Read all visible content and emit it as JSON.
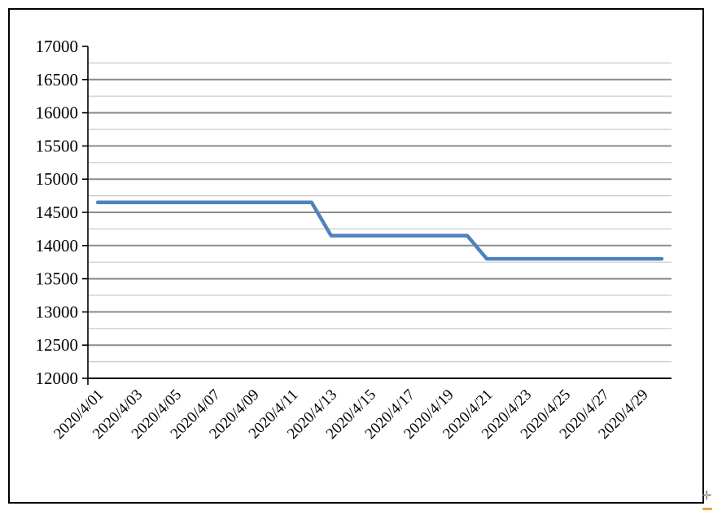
{
  "chart_data": {
    "type": "line",
    "title": "",
    "legend": "none",
    "x_labels": [
      "2020/4/01",
      "2020/4/03",
      "2020/4/05",
      "2020/4/07",
      "2020/4/09",
      "2020/4/11",
      "2020/4/13",
      "2020/4/15",
      "2020/4/17",
      "2020/4/19",
      "2020/4/21",
      "2020/4/23",
      "2020/4/25",
      "2020/4/27",
      "2020/4/29"
    ],
    "x_label_every_n_points": 2,
    "x_label_rotation_deg": -45,
    "series": [
      {
        "color": "#4F81BD",
        "values": [
          14650,
          14650,
          14650,
          14650,
          14650,
          14650,
          14650,
          14650,
          14650,
          14650,
          14650,
          14650,
          14150,
          14150,
          14150,
          14150,
          14150,
          14150,
          14150,
          14150,
          13800,
          13800,
          13800,
          13800,
          13800,
          13800,
          13800,
          13800,
          13800,
          13800
        ]
      }
    ],
    "ylim": [
      12000,
      17000
    ],
    "y_major": 500,
    "y_minor": 250,
    "y_tick_labels": [
      "12000",
      "12500",
      "13000",
      "13500",
      "14000",
      "14500",
      "15000",
      "15500",
      "16000",
      "16500",
      "17000"
    ],
    "grid": {
      "major_on": true,
      "minor_on": true,
      "major_color": "#8C8C8C",
      "minor_color": "#C9C9C9"
    },
    "axis_color": "#000000"
  },
  "frame": {
    "border_color": "#000000"
  },
  "artifacts": {
    "cursor_glyph": "✛",
    "cursor_color": "#7b7b7b",
    "orange_mark_color": "#F2A23C"
  }
}
